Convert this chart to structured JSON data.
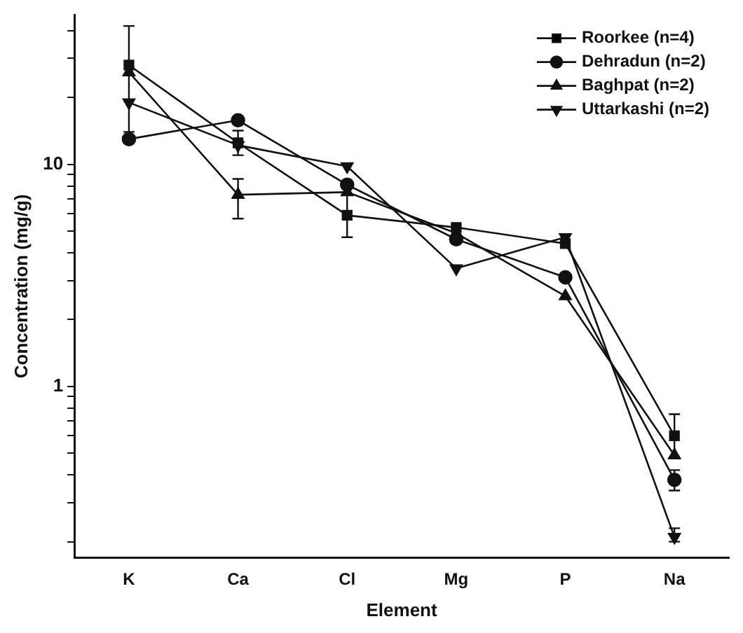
{
  "chart_data": {
    "type": "line",
    "xlabel": "Element",
    "ylabel": "Concentration (mg/g)",
    "categories": [
      "K",
      "Ca",
      "Cl",
      "Mg",
      "P",
      "Na"
    ],
    "log": "y",
    "ylim": [
      0.17,
      47
    ],
    "yticks": [
      {
        "value": 0.2,
        "label": null
      },
      {
        "value": 0.3,
        "label": null
      },
      {
        "value": 0.4,
        "label": null
      },
      {
        "value": 0.5,
        "label": null
      },
      {
        "value": 0.6,
        "label": null
      },
      {
        "value": 0.7,
        "label": null
      },
      {
        "value": 0.8,
        "label": null
      },
      {
        "value": 0.9,
        "label": null
      },
      1,
      {
        "value": 2,
        "label": null
      },
      {
        "value": 3,
        "label": null
      },
      {
        "value": 4,
        "label": null
      },
      {
        "value": 5,
        "label": null
      },
      {
        "value": 6,
        "label": null
      },
      {
        "value": 7,
        "label": null
      },
      {
        "value": 8,
        "label": null
      },
      {
        "value": 9,
        "label": null
      },
      10,
      {
        "value": 20,
        "label": null
      },
      {
        "value": 30,
        "label": null
      },
      {
        "value": 40,
        "label": null
      }
    ],
    "grid": false,
    "legend": "top right",
    "line_style": "solid",
    "series": [
      {
        "name": "Roorkee (n=4)",
        "color": "#111111",
        "marker": "square",
        "values": [
          28,
          12.5,
          5.9,
          5.2,
          4.4,
          0.6
        ],
        "errors": [
          [
            14,
            42
          ],
          null,
          [
            4.7,
            7.3
          ],
          null,
          null,
          [
            0.48,
            0.75
          ]
        ]
      },
      {
        "name": "Dehradun (n=2)",
        "color": "#111111",
        "marker": "circle",
        "values": [
          13,
          15.8,
          8.1,
          4.6,
          3.1,
          0.38
        ],
        "errors": [
          null,
          null,
          null,
          null,
          null,
          [
            0.34,
            0.42
          ]
        ]
      },
      {
        "name": "Baghpat (n=2)",
        "color": "#111111",
        "marker": "triangle",
        "values": [
          26,
          7.3,
          7.5,
          4.9,
          2.55,
          0.49
        ],
        "errors": [
          null,
          [
            5.7,
            8.6
          ],
          null,
          null,
          null,
          null
        ]
      },
      {
        "name": "Uttarkashi (n=2)",
        "color": "#111111",
        "marker": "triangle-down",
        "values": [
          19,
          12.2,
          9.8,
          3.4,
          4.7,
          0.21
        ],
        "errors": [
          null,
          [
            11,
            14.2
          ],
          null,
          null,
          null,
          [
            0.2,
            0.23
          ]
        ]
      }
    ]
  }
}
